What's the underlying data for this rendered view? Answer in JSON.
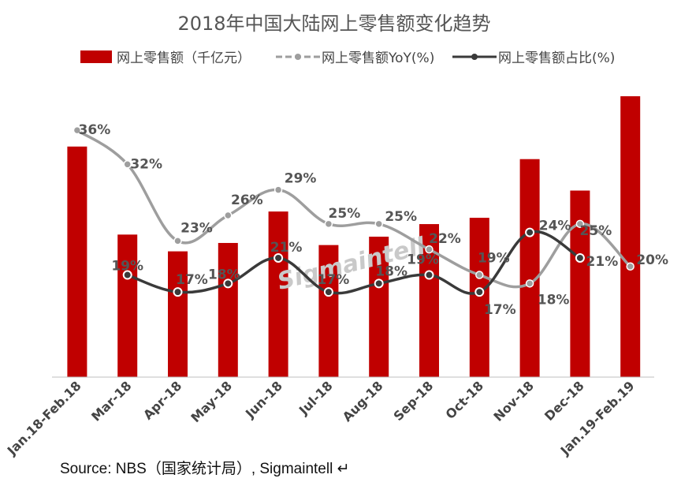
{
  "chart_data": {
    "type": "bar",
    "title": "2018年中国大陆网上零售额变化趋势",
    "categories": [
      "Jan.18-Feb.18",
      "Mar-18",
      "Apr-18",
      "May-18",
      "Jun-18",
      "Jul-18",
      "Aug-18",
      "Sep-18",
      "Oct-18",
      "Nov-18",
      "Dec-18",
      "Jan.19-Feb.19"
    ],
    "series": [
      {
        "name": "网上零售额（千亿元）",
        "kind": "bar",
        "color": "#c00000",
        "values": [
          11.0,
          6.8,
          6.0,
          6.4,
          7.9,
          6.3,
          6.7,
          7.3,
          7.6,
          10.4,
          8.9,
          13.4
        ]
      },
      {
        "name": "网上零售额YoY(%)",
        "kind": "line",
        "color": "#9e9e9e",
        "values": [
          36,
          32,
          23,
          26,
          29,
          25,
          25,
          22,
          19,
          18,
          25,
          20
        ]
      },
      {
        "name": "网上零售额占比(%)",
        "kind": "line",
        "color": "#3a3a3a",
        "values": [
          null,
          19,
          17,
          18,
          21,
          17,
          18,
          19,
          17,
          24,
          21,
          null
        ]
      }
    ],
    "yoy_labels": [
      "36%",
      "32%",
      "23%",
      "26%",
      "29%",
      "25%",
      "25%",
      "22%",
      "19%",
      "18%",
      "25%",
      "20%"
    ],
    "share_labels": [
      null,
      "19%",
      "17%",
      "18%",
      "21%",
      "17%",
      "18%",
      "19%",
      "17%",
      "24%",
      "21%",
      null
    ],
    "bar_ylim": [
      0,
      13.4
    ],
    "pct_ylim": [
      7,
      40
    ],
    "grid": false,
    "legend_position": "top"
  },
  "legend": {
    "bar_label": "网上零售额（千亿元）",
    "yoy_label": "网上零售额YoY(%)",
    "share_label": "网上零售额占比(%)"
  },
  "watermark": "Sigmaintell",
  "source": "Source: NBS（国家统计局）, Sigmaintell ↵"
}
